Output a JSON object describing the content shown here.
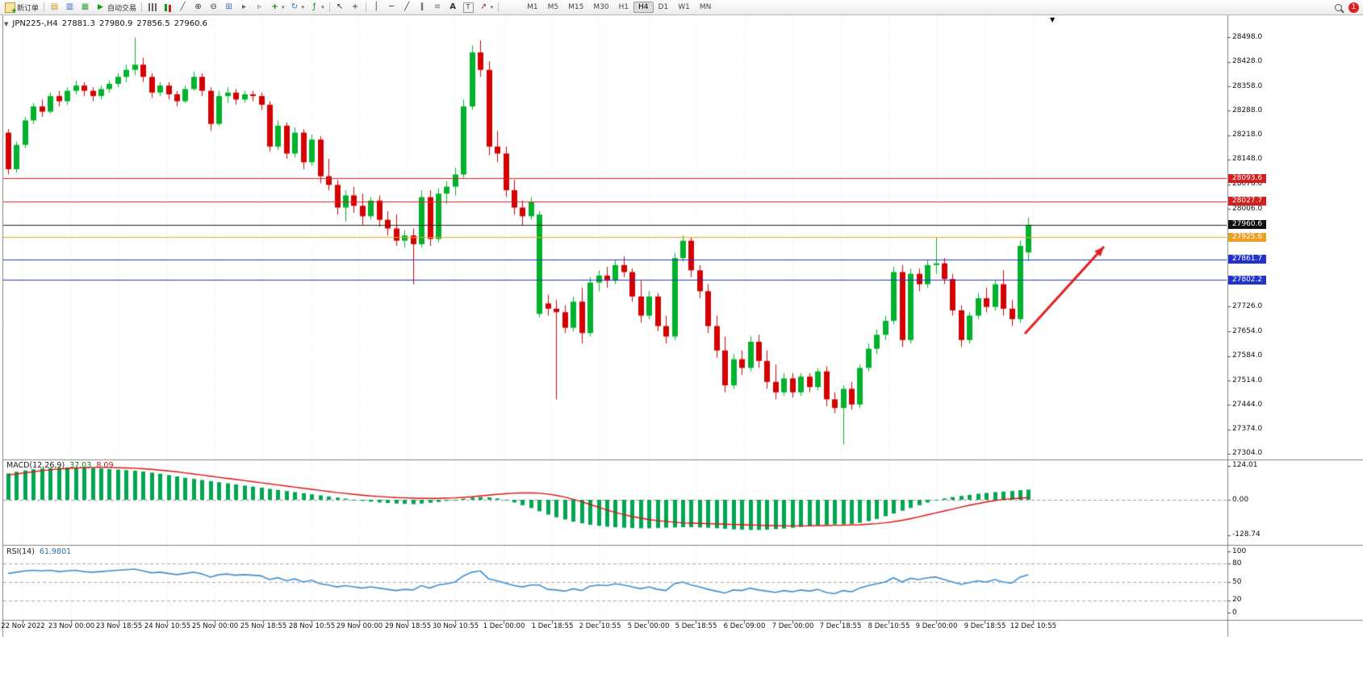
{
  "toolbar": {
    "new_order": "新订单",
    "autotrading": "自动交易",
    "timeframes": [
      "M1",
      "M5",
      "M15",
      "M30",
      "H1",
      "H4",
      "D1",
      "W1",
      "MN"
    ],
    "active_timeframe": "H4",
    "notification_count": "1"
  },
  "chart": {
    "symbol_period": "JPN225-,H4",
    "open": "27881.3",
    "high": "27980.9",
    "low": "27856.5",
    "close": "27960.6",
    "price_axis_labels": [
      "28498.0",
      "28428.0",
      "28358.0",
      "28288.0",
      "28218.0",
      "28148.0",
      "28076.0",
      "28006.0",
      "27796.0",
      "27726.0",
      "27654.0",
      "27584.0",
      "27514.0",
      "27444.0",
      "27374.0",
      "27304.0"
    ],
    "levels": [
      {
        "label": "28093.6",
        "price": 28093.6,
        "color": "#e02020",
        "badge": "#d02020"
      },
      {
        "label": "28027.7",
        "price": 28027.7,
        "color": "#e02020",
        "badge": "#d02020"
      },
      {
        "label": "27925.6",
        "price": 27925.6,
        "color": "#f0a028",
        "badge": "#eda020"
      },
      {
        "label": "27861.7",
        "price": 27861.7,
        "color": "#2330cf",
        "badge": "#2233cc"
      },
      {
        "label": "27802.2",
        "price": 27802.2,
        "color": "#2330cf",
        "badge": "#2233cc"
      }
    ],
    "current_price": {
      "label": "27960.6",
      "price": 27960.6,
      "color": "#222222",
      "badge": "#101010"
    },
    "time_axis_labels": [
      "22 Nov 2022",
      "23 Nov 00:00",
      "23 Nov 18:55",
      "24 Nov 10:55",
      "25 Nov 00:00",
      "25 Nov 18:55",
      "28 Nov 10:55",
      "29 Nov 00:00",
      "29 Nov 18:55",
      "30 Nov 10:55",
      "1 Dec 00:00",
      "1 Dec 18:55",
      "2 Dec 10:55",
      "5 Dec 00:00",
      "5 Dec 18:55",
      "6 Dec 09:00",
      "7 Dec 00:00",
      "7 Dec 18:55",
      "8 Dec 10:55",
      "9 Dec 00:00",
      "9 Dec 18:55",
      "12 Dec 10:55"
    ]
  },
  "macd": {
    "name": "MACD(12,26,9)",
    "main_value": "37.03",
    "signal_value": "8.09",
    "scale_labels": [
      {
        "text": "124.01",
        "value": 124.01
      },
      {
        "text": "0.00",
        "value": 0
      },
      {
        "text": "-128.74",
        "value": -128.74
      }
    ]
  },
  "rsi": {
    "name": "RSI(14)",
    "value": "61.9801",
    "scale_labels": [
      {
        "text": "100",
        "value": 100
      },
      {
        "text": "80",
        "value": 80
      },
      {
        "text": "50",
        "value": 50
      },
      {
        "text": "20",
        "value": 20
      },
      {
        "text": "0",
        "value": 0
      }
    ],
    "level_lines": [
      80,
      50,
      20
    ]
  },
  "chart_data": {
    "type": "candlestick",
    "symbol": "JPN225-",
    "timeframe": "H4",
    "colors": {
      "up": "#00b22c",
      "down": "#d40000",
      "macd_hist": "#00a651",
      "macd_signal": "#e01010",
      "rsi": "#3e8fd0",
      "grid": "#e6e6e6",
      "level_dash": "#aaaaaa"
    },
    "ohlc": [
      [
        28225,
        28235,
        28105,
        28120
      ],
      [
        28120,
        28200,
        28110,
        28190
      ],
      [
        28190,
        28270,
        28180,
        28260
      ],
      [
        28260,
        28310,
        28250,
        28300
      ],
      [
        28300,
        28320,
        28270,
        28285
      ],
      [
        28285,
        28340,
        28280,
        28330
      ],
      [
        28330,
        28345,
        28300,
        28315
      ],
      [
        28315,
        28355,
        28305,
        28345
      ],
      [
        28345,
        28375,
        28335,
        28360
      ],
      [
        28360,
        28370,
        28330,
        28345
      ],
      [
        28345,
        28355,
        28315,
        28330
      ],
      [
        28330,
        28360,
        28320,
        28350
      ],
      [
        28350,
        28375,
        28340,
        28365
      ],
      [
        28365,
        28395,
        28355,
        28385
      ],
      [
        28385,
        28420,
        28370,
        28405
      ],
      [
        28405,
        28498,
        28390,
        28420
      ],
      [
        28420,
        28440,
        28370,
        28385
      ],
      [
        28385,
        28395,
        28325,
        28340
      ],
      [
        28340,
        28370,
        28330,
        28360
      ],
      [
        28360,
        28370,
        28320,
        28335
      ],
      [
        28335,
        28345,
        28300,
        28315
      ],
      [
        28315,
        28360,
        28310,
        28350
      ],
      [
        28350,
        28400,
        28345,
        28385
      ],
      [
        28385,
        28395,
        28330,
        28345
      ],
      [
        28345,
        28355,
        28230,
        28250
      ],
      [
        28250,
        28345,
        28245,
        28330
      ],
      [
        28330,
        28355,
        28310,
        28340
      ],
      [
        28340,
        28350,
        28305,
        28320
      ],
      [
        28320,
        28345,
        28310,
        28335
      ],
      [
        28335,
        28345,
        28315,
        28330
      ],
      [
        28330,
        28340,
        28290,
        28305
      ],
      [
        28305,
        28315,
        28170,
        28185
      ],
      [
        28185,
        28260,
        28175,
        28245
      ],
      [
        28245,
        28255,
        28150,
        28165
      ],
      [
        28165,
        28240,
        28155,
        28225
      ],
      [
        28225,
        28235,
        28120,
        28140
      ],
      [
        28140,
        28220,
        28130,
        28205
      ],
      [
        28205,
        28215,
        28080,
        28100
      ],
      [
        28100,
        28150,
        28060,
        28075
      ],
      [
        28075,
        28090,
        27990,
        28010
      ],
      [
        28010,
        28060,
        27970,
        28045
      ],
      [
        28045,
        28070,
        27995,
        28015
      ],
      [
        28015,
        28050,
        27960,
        27985
      ],
      [
        27985,
        28040,
        27975,
        28030
      ],
      [
        28030,
        28045,
        27955,
        27975
      ],
      [
        27975,
        28000,
        27930,
        27950
      ],
      [
        27950,
        27990,
        27900,
        27915
      ],
      [
        27915,
        27945,
        27895,
        27930
      ],
      [
        27930,
        27950,
        27790,
        27905
      ],
      [
        27905,
        28060,
        27895,
        28040
      ],
      [
        28040,
        28060,
        27900,
        27920
      ],
      [
        27920,
        28065,
        27910,
        28050
      ],
      [
        28050,
        28085,
        28020,
        28070
      ],
      [
        28070,
        28125,
        28045,
        28105
      ],
      [
        28105,
        28320,
        28095,
        28300
      ],
      [
        28300,
        28475,
        28290,
        28455
      ],
      [
        28455,
        28490,
        28385,
        28405
      ],
      [
        28405,
        28430,
        28160,
        28185
      ],
      [
        28185,
        28230,
        28140,
        28165
      ],
      [
        28165,
        28185,
        28040,
        28060
      ],
      [
        28060,
        28090,
        27990,
        28010
      ],
      [
        28010,
        28030,
        27960,
        27985
      ],
      [
        27985,
        28040,
        27975,
        28025
      ],
      [
        27705,
        28000,
        27695,
        27990
      ],
      [
        27735,
        27760,
        27700,
        27720
      ],
      [
        27720,
        27745,
        27460,
        27710
      ],
      [
        27710,
        27730,
        27650,
        27665
      ],
      [
        27665,
        27755,
        27655,
        27740
      ],
      [
        27740,
        27780,
        27620,
        27650
      ],
      [
        27650,
        27810,
        27640,
        27795
      ],
      [
        27795,
        27830,
        27770,
        27815
      ],
      [
        27815,
        27840,
        27780,
        27800
      ],
      [
        27800,
        27860,
        27790,
        27845
      ],
      [
        27845,
        27870,
        27810,
        27825
      ],
      [
        27825,
        27835,
        27740,
        27755
      ],
      [
        27755,
        27800,
        27680,
        27700
      ],
      [
        27700,
        27770,
        27690,
        27755
      ],
      [
        27755,
        27765,
        27655,
        27670
      ],
      [
        27670,
        27700,
        27620,
        27640
      ],
      [
        27640,
        27880,
        27630,
        27865
      ],
      [
        27865,
        27930,
        27855,
        27915
      ],
      [
        27915,
        27925,
        27810,
        27830
      ],
      [
        27830,
        27845,
        27750,
        27770
      ],
      [
        27770,
        27790,
        27650,
        27670
      ],
      [
        27670,
        27700,
        27580,
        27600
      ],
      [
        27600,
        27640,
        27480,
        27500
      ],
      [
        27500,
        27590,
        27490,
        27575
      ],
      [
        27575,
        27600,
        27530,
        27550
      ],
      [
        27550,
        27640,
        27540,
        27625
      ],
      [
        27625,
        27645,
        27550,
        27570
      ],
      [
        27570,
        27600,
        27490,
        27510
      ],
      [
        27510,
        27560,
        27460,
        27480
      ],
      [
        27480,
        27535,
        27470,
        27520
      ],
      [
        27520,
        27535,
        27465,
        27480
      ],
      [
        27480,
        27535,
        27470,
        27525
      ],
      [
        27525,
        27535,
        27480,
        27495
      ],
      [
        27495,
        27550,
        27485,
        27540
      ],
      [
        27540,
        27555,
        27440,
        27460
      ],
      [
        27460,
        27480,
        27420,
        27435
      ],
      [
        27435,
        27500,
        27330,
        27490
      ],
      [
        27490,
        27510,
        27430,
        27445
      ],
      [
        27445,
        27560,
        27435,
        27550
      ],
      [
        27550,
        27620,
        27540,
        27605
      ],
      [
        27605,
        27660,
        27590,
        27645
      ],
      [
        27645,
        27700,
        27630,
        27685
      ],
      [
        27685,
        27840,
        27675,
        27825
      ],
      [
        27825,
        27845,
        27610,
        27630
      ],
      [
        27630,
        27835,
        27620,
        27820
      ],
      [
        27820,
        27835,
        27770,
        27790
      ],
      [
        27790,
        27860,
        27780,
        27845
      ],
      [
        27845,
        27925,
        27820,
        27850
      ],
      [
        27850,
        27865,
        27790,
        27805
      ],
      [
        27805,
        27820,
        27700,
        27715
      ],
      [
        27715,
        27730,
        27610,
        27630
      ],
      [
        27630,
        27710,
        27620,
        27700
      ],
      [
        27700,
        27765,
        27690,
        27750
      ],
      [
        27750,
        27780,
        27710,
        27725
      ],
      [
        27725,
        27800,
        27715,
        27790
      ],
      [
        27790,
        27830,
        27700,
        27720
      ],
      [
        27720,
        27745,
        27670,
        27690
      ],
      [
        27690,
        27915,
        27680,
        27900
      ],
      [
        27881.3,
        27980.9,
        27856.5,
        27960.6
      ]
    ],
    "macd_histogram": [
      96,
      102,
      107,
      111,
      114,
      116,
      117,
      118,
      118,
      117,
      116,
      114,
      112,
      110,
      108,
      106,
      103,
      99,
      95,
      90,
      85,
      80,
      76,
      72,
      68,
      64,
      60,
      56,
      52,
      48,
      44,
      40,
      36,
      32,
      28,
      24,
      20,
      16,
      12,
      8,
      4,
      0,
      -4,
      -7,
      -10,
      -12,
      -14,
      -15,
      -16,
      -14,
      -11,
      -8,
      -4,
      0,
      4,
      8,
      10,
      9,
      5,
      -2,
      -10,
      -20,
      -30,
      -42,
      -54,
      -64,
      -72,
      -80,
      -86,
      -91,
      -95,
      -98,
      -100,
      -102,
      -103,
      -104,
      -104,
      -103,
      -102,
      -101,
      -100,
      -100,
      -101,
      -102,
      -104,
      -106,
      -108,
      -109,
      -110,
      -110,
      -109,
      -107,
      -105,
      -102,
      -99,
      -96,
      -93,
      -91,
      -90,
      -90,
      -88,
      -84,
      -78,
      -70,
      -60,
      -50,
      -40,
      -30,
      -20,
      -10,
      -2,
      5,
      10,
      14,
      18,
      22,
      25,
      28,
      30,
      32,
      35,
      37.03
    ],
    "macd_signal": [
      90,
      94,
      98,
      102,
      106,
      109,
      112,
      114,
      116,
      117,
      118,
      118,
      118,
      117,
      116,
      115,
      113,
      111,
      108,
      105,
      102,
      98,
      94,
      90,
      86,
      82,
      78,
      74,
      70,
      66,
      62,
      58,
      54,
      50,
      46,
      42,
      38,
      34,
      30,
      26,
      23,
      20,
      17,
      14,
      12,
      10,
      8,
      7,
      6,
      5,
      5,
      5,
      6,
      7,
      9,
      11,
      14,
      17,
      20,
      22,
      24,
      25,
      25,
      24,
      21,
      16,
      10,
      2,
      -7,
      -17,
      -27,
      -37,
      -46,
      -54,
      -61,
      -67,
      -72,
      -76,
      -79,
      -82,
      -84,
      -85,
      -86,
      -87,
      -88,
      -89,
      -90,
      -91,
      -92,
      -93,
      -94,
      -94,
      -95,
      -95,
      -95,
      -95,
      -94,
      -94,
      -93,
      -93,
      -92,
      -91,
      -89,
      -87,
      -84,
      -80,
      -75,
      -69,
      -62,
      -55,
      -48,
      -41,
      -34,
      -27,
      -20,
      -14,
      -8,
      -3,
      1,
      4,
      6,
      8.09
    ],
    "rsi": [
      64,
      66,
      68,
      69,
      68,
      69,
      67,
      68,
      69,
      67,
      66,
      67,
      68,
      69,
      70,
      71,
      68,
      65,
      66,
      64,
      62,
      64,
      66,
      63,
      58,
      62,
      63,
      61,
      62,
      61,
      60,
      54,
      57,
      52,
      55,
      50,
      53,
      47,
      45,
      42,
      44,
      42,
      40,
      42,
      40,
      38,
      36,
      38,
      37,
      44,
      40,
      45,
      47,
      50,
      60,
      66,
      68,
      55,
      52,
      48,
      44,
      42,
      45,
      45,
      38,
      37,
      35,
      39,
      36,
      43,
      45,
      44,
      47,
      45,
      42,
      39,
      42,
      38,
      36,
      47,
      50,
      45,
      42,
      38,
      35,
      32,
      37,
      36,
      40,
      37,
      35,
      33,
      36,
      34,
      37,
      35,
      38,
      33,
      31,
      36,
      34,
      40,
      44,
      47,
      50,
      57,
      50,
      56,
      54,
      57,
      58,
      54,
      50,
      46,
      49,
      52,
      50,
      54,
      50,
      48,
      58,
      61.98
    ],
    "annotations": [
      {
        "type": "arrow",
        "color": "#e02020",
        "from": [
          1270,
          414
        ],
        "to": [
          1368,
          306
        ]
      }
    ]
  }
}
